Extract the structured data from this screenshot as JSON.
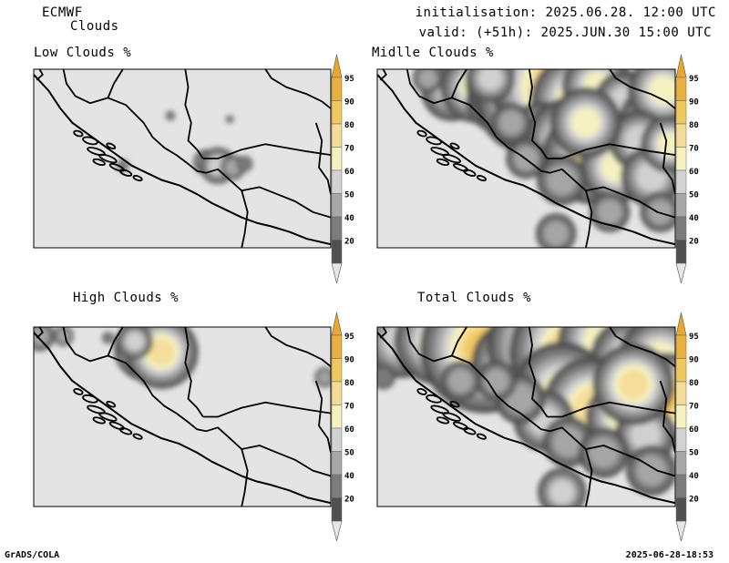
{
  "header": {
    "model": "ECMWF",
    "variable": "Clouds",
    "initialisation": "initialisation: 2025.06.28. 12:00 UTC",
    "valid": "valid: (+51h): 2025.JUN.30 15:00 UTC"
  },
  "panels": [
    {
      "title": "Low Clouds %"
    },
    {
      "title": "Midlle Clouds %"
    },
    {
      "title": "High Clouds %"
    },
    {
      "title": "Total Clouds %"
    }
  ],
  "colorbar": {
    "levels": [
      "95",
      "90",
      "80",
      "70",
      "60",
      "50",
      "40",
      "20"
    ],
    "colors": [
      "#e8b040",
      "#f0c860",
      "#f4dc98",
      "#f6f2c0",
      "#d2d2d2",
      "#a8a8a8",
      "#7c7c7c",
      "#505050"
    ],
    "cap_top_color": "#e8a830",
    "cap_bottom_color": "#e6e6e6"
  },
  "footer": {
    "left": "GrADS/COLA",
    "right": "2025-06-28-18:53"
  },
  "map": {
    "background_color": "#e4e4e4",
    "border_color": "#000000"
  }
}
